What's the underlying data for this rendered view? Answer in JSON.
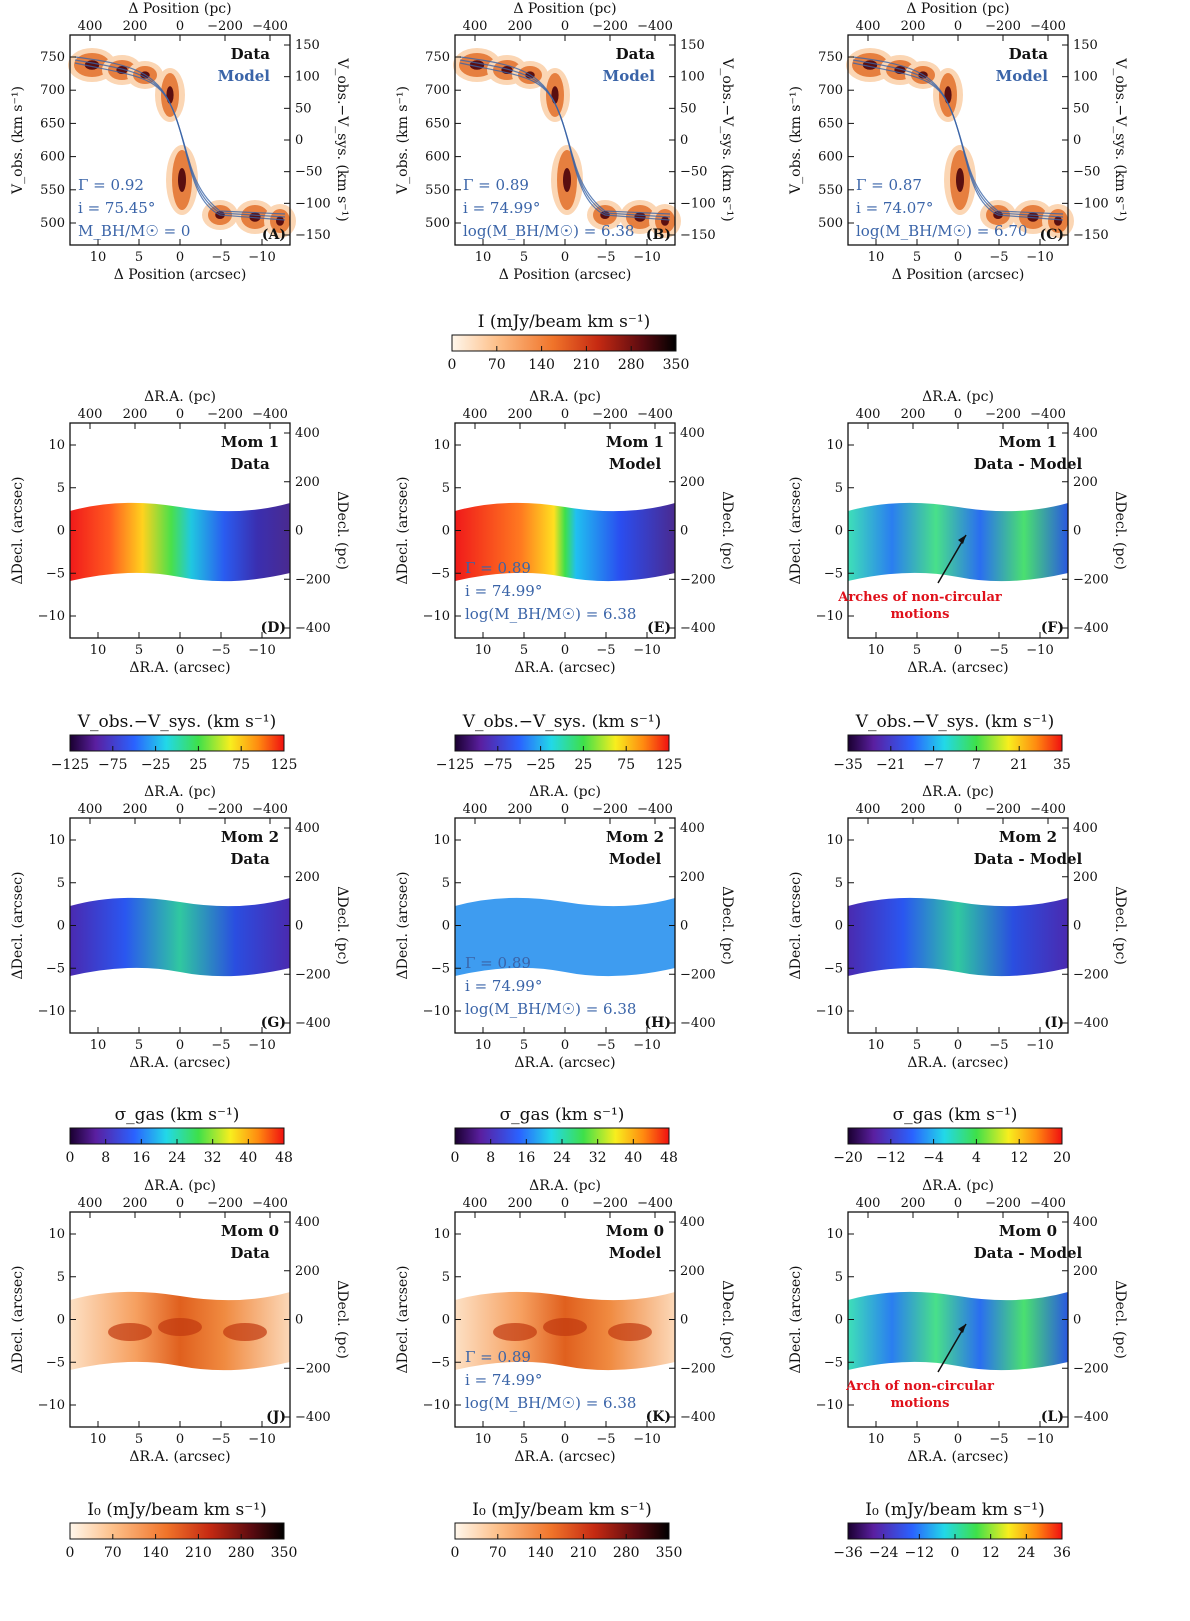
{
  "pv_panels": [
    {
      "label": "(A)",
      "top_axis": "Δ Position (pc)",
      "bottom_axis": "Δ Position (arcsec)",
      "left_axis": "V_obs. (km s⁻¹)",
      "right_axis": "V_obs.−V_sys. (km s⁻¹)",
      "legend_data": "Data",
      "legend_model": "Model",
      "param_lines": [
        "Γ = 0.92",
        "i = 75.45°",
        "M_BH/M☉ = 0"
      ],
      "top_ticks": [
        "400",
        "200",
        "0",
        "−200",
        "−400"
      ],
      "bottom_ticks": [
        "10",
        "5",
        "0",
        "−5",
        "−10"
      ],
      "left_ticks": [
        "750",
        "700",
        "650",
        "600",
        "550",
        "500"
      ],
      "right_ticks": [
        "150",
        "100",
        "50",
        "0",
        "−50",
        "−100",
        "−150"
      ]
    },
    {
      "label": "(B)",
      "top_axis": "Δ Position (pc)",
      "bottom_axis": "Δ Position (arcsec)",
      "left_axis": "V_obs. (km s⁻¹)",
      "right_axis": "V_obs.−V_sys. (km s⁻¹)",
      "legend_data": "Data",
      "legend_model": "Model",
      "param_lines": [
        "Γ = 0.89",
        "i = 74.99°",
        "log(M_BH/M☉) = 6.38"
      ],
      "top_ticks": [
        "400",
        "200",
        "0",
        "−200",
        "−400"
      ],
      "bottom_ticks": [
        "10",
        "5",
        "0",
        "−5",
        "−10"
      ],
      "left_ticks": [
        "750",
        "700",
        "650",
        "600",
        "550",
        "500"
      ],
      "right_ticks": [
        "150",
        "100",
        "50",
        "0",
        "−50",
        "−100",
        "−150"
      ]
    },
    {
      "label": "(C)",
      "top_axis": "Δ Position (pc)",
      "bottom_axis": "Δ Position (arcsec)",
      "left_axis": "V_obs. (km s⁻¹)",
      "right_axis": "V_obs.−V_sys. (km s⁻¹)",
      "legend_data": "Data",
      "legend_model": "Model",
      "param_lines": [
        "Γ = 0.87",
        "i = 74.07°",
        "log(M_BH/M☉) = 6.70"
      ],
      "top_ticks": [
        "400",
        "200",
        "0",
        "−200",
        "−400"
      ],
      "bottom_ticks": [
        "10",
        "5",
        "0",
        "−5",
        "−10"
      ],
      "left_ticks": [
        "750",
        "700",
        "650",
        "600",
        "550",
        "500"
      ],
      "right_ticks": [
        "150",
        "100",
        "50",
        "0",
        "−50",
        "−100",
        "−150"
      ]
    }
  ],
  "pv_colorbar": {
    "title": "I (mJy/beam km s⁻¹)",
    "ticks": [
      "0",
      "70",
      "140",
      "210",
      "280",
      "350"
    ]
  },
  "map_axes": {
    "top_axis": "ΔR.A. (pc)",
    "bottom_axis": "ΔR.A. (arcsec)",
    "left_axis": "ΔDecl. (arcsec)",
    "right_axis": "ΔDecl. (pc)",
    "top_ticks": [
      "400",
      "200",
      "0",
      "−200",
      "−400"
    ],
    "bottom_ticks": [
      "10",
      "5",
      "0",
      "−5",
      "−10"
    ],
    "left_ticks": [
      "10",
      "5",
      "0",
      "−5",
      "−10"
    ],
    "right_ticks": [
      "400",
      "200",
      "0",
      "−200",
      "−400"
    ]
  },
  "rows": [
    {
      "panels": [
        {
          "label": "(D)",
          "title_lines": [
            "Mom 1",
            "Data"
          ],
          "params": [],
          "annotation": [],
          "colormap": "vel"
        },
        {
          "label": "(E)",
          "title_lines": [
            "Mom 1",
            "Model"
          ],
          "params": [
            "Γ = 0.89",
            "i = 74.99°",
            "log(M_BH/M☉) = 6.38"
          ],
          "annotation": [],
          "colormap": "vel_model"
        },
        {
          "label": "(F)",
          "title_lines": [
            "Mom 1",
            "Data - Model"
          ],
          "params": [],
          "annotation": [
            "Arches of non-circular",
            "motions"
          ],
          "colormap": "resid"
        }
      ],
      "colorbars": [
        {
          "title": "V_obs.−V_sys. (km s⁻¹)",
          "ticks": [
            "−125",
            "−75",
            "−25",
            "25",
            "75",
            "125"
          ],
          "cmap": "rainbow"
        },
        {
          "title": "V_obs.−V_sys. (km s⁻¹)",
          "ticks": [
            "−125",
            "−75",
            "−25",
            "25",
            "75",
            "125"
          ],
          "cmap": "rainbow"
        },
        {
          "title": "V_obs.−V_sys. (km s⁻¹)",
          "ticks": [
            "−35",
            "−21",
            "−7",
            "7",
            "21",
            "35"
          ],
          "cmap": "rainbow"
        }
      ]
    },
    {
      "panels": [
        {
          "label": "(G)",
          "title_lines": [
            "Mom 2",
            "Data"
          ],
          "params": [],
          "annotation": [],
          "colormap": "disp"
        },
        {
          "label": "(H)",
          "title_lines": [
            "Mom 2",
            "Model"
          ],
          "params": [
            "Γ = 0.89",
            "i = 74.99°",
            "log(M_BH/M☉) = 6.38"
          ],
          "annotation": [],
          "colormap": "disp_model"
        },
        {
          "label": "(I)",
          "title_lines": [
            "Mom 2",
            "Data - Model"
          ],
          "params": [],
          "annotation": [],
          "colormap": "disp"
        }
      ],
      "colorbars": [
        {
          "title": "σ_gas (km s⁻¹)",
          "ticks": [
            "0",
            "8",
            "16",
            "24",
            "32",
            "40",
            "48"
          ],
          "cmap": "rainbow"
        },
        {
          "title": "σ_gas (km s⁻¹)",
          "ticks": [
            "0",
            "8",
            "16",
            "24",
            "32",
            "40",
            "48"
          ],
          "cmap": "rainbow"
        },
        {
          "title": "σ_gas (km s⁻¹)",
          "ticks": [
            "−20",
            "−12",
            "−4",
            "4",
            "12",
            "20"
          ],
          "cmap": "rainbow"
        }
      ]
    },
    {
      "panels": [
        {
          "label": "(J)",
          "title_lines": [
            "Mom 0",
            "Data"
          ],
          "params": [],
          "annotation": [],
          "colormap": "flux"
        },
        {
          "label": "(K)",
          "title_lines": [
            "Mom 0",
            "Model"
          ],
          "params": [
            "Γ = 0.89",
            "i = 74.99°",
            "log(M_BH/M☉) = 6.38"
          ],
          "annotation": [],
          "colormap": "flux"
        },
        {
          "label": "(L)",
          "title_lines": [
            "Mom 0",
            "Data - Model"
          ],
          "params": [],
          "annotation": [
            "Arch of non-circular",
            "motions"
          ],
          "colormap": "resid"
        }
      ],
      "colorbars": [
        {
          "title": "I₀ (mJy/beam km s⁻¹)",
          "ticks": [
            "0",
            "70",
            "140",
            "210",
            "280",
            "350"
          ],
          "cmap": "heat"
        },
        {
          "title": "I₀ (mJy/beam km s⁻¹)",
          "ticks": [
            "0",
            "70",
            "140",
            "210",
            "280",
            "350"
          ],
          "cmap": "heat"
        },
        {
          "title": "I₀ (mJy/beam km s⁻¹)",
          "ticks": [
            "−36",
            "−24",
            "−12",
            "0",
            "12",
            "24",
            "36"
          ],
          "cmap": "rainbow"
        }
      ]
    }
  ],
  "colors": {
    "model_blue": "#3a64a8",
    "annotation_red": "#e0101a",
    "contour_orange": "#e07a3a"
  }
}
